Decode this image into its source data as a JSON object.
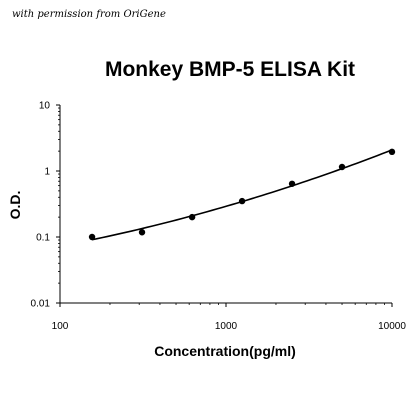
{
  "credit": "with permission from OriGene",
  "chart_data": {
    "type": "scatter",
    "title": "Monkey BMP-5 ELISA Kit",
    "xlabel": "Concentration(pg/ml)",
    "ylabel": "O.D.",
    "x_scale": "log",
    "y_scale": "log",
    "xlim": [
      100,
      10000
    ],
    "ylim": [
      0.01,
      10
    ],
    "x_ticks": [
      "100",
      "1000",
      "10000"
    ],
    "y_ticks": [
      "0.01",
      "0.1",
      "1",
      "10"
    ],
    "grid": false,
    "legend": "none",
    "series": [
      {
        "x": [
          156,
          312,
          625,
          1250,
          2500,
          5000,
          10000
        ],
        "y": [
          0.1,
          0.118,
          0.2,
          0.35,
          0.64,
          1.15,
          1.95
        ],
        "fit_curve": true
      }
    ]
  }
}
